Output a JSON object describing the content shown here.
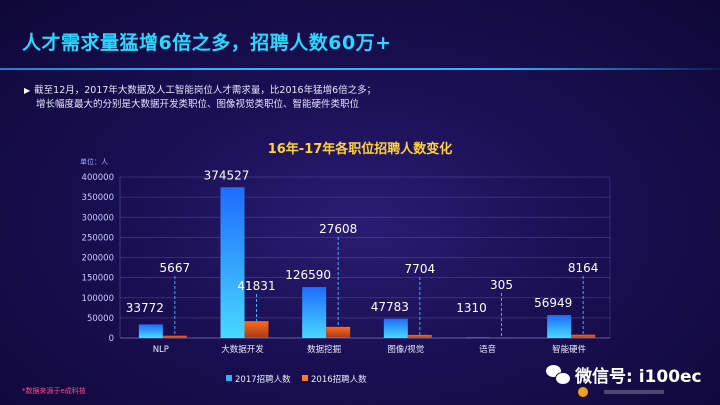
{
  "slide": {
    "title": "人才需求量猛增6倍之多，招聘人数60万+",
    "summary_line1": "截至12月，2017年大数据及人工智能岗位人才需求量，比2016年猛增6倍之多；",
    "summary_line2": "增长幅度最大的分别是大数据开发类职位、图像视觉类职位、智能硬件类职位",
    "footnote": "*数据来源于e成科技",
    "wechat": "微信号: i100ec"
  },
  "chart_data": {
    "type": "bar",
    "title": "16年-17年各职位招聘人数变化",
    "unit_label": "单位：人",
    "categories": [
      "NLP",
      "大数据开发",
      "数据挖掘",
      "图像/视觉",
      "语音",
      "智能硬件"
    ],
    "series": [
      {
        "name": "2017招聘人数",
        "values": [
          33772,
          374527,
          126590,
          47783,
          1310,
          56949
        ],
        "color": "#2fb3ff"
      },
      {
        "name": "2016招聘人数",
        "values": [
          5667,
          41831,
          27608,
          7704,
          305,
          8164
        ],
        "color": "#ff7a26"
      }
    ],
    "ylim": [
      0,
      400000
    ],
    "yticks": [
      0,
      50000,
      100000,
      150000,
      200000,
      250000,
      300000,
      350000,
      400000
    ],
    "legend_position": "bottom-left",
    "grid": true
  }
}
